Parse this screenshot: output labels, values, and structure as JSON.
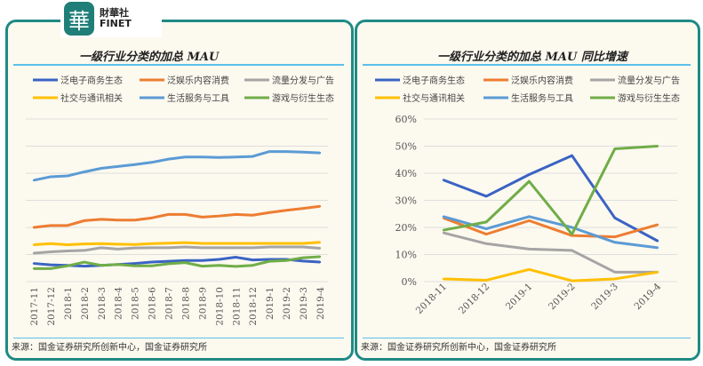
{
  "logo": {
    "cn": "財華社",
    "en": "FINET",
    "mark": "華"
  },
  "source_note": "来源：国金证券研究所创新中心，国金证券研究所",
  "chart_data": [
    {
      "type": "line",
      "title": "一级行业分类的加总 MAU",
      "xlabel": "",
      "ylabel": "",
      "ylim": [
        0,
        6
      ],
      "grid": true,
      "legend": "top",
      "categories": [
        "2017-11",
        "2017-12",
        "2018-1",
        "2018-2",
        "2018-3",
        "2018-4",
        "2018-5",
        "2018-6",
        "2018-7",
        "2018-8",
        "2018-9",
        "2018-10",
        "2018-11",
        "2018-12",
        "2019-1",
        "2019-2",
        "2019-3",
        "2019-4"
      ],
      "series": [
        {
          "name": "泛电子商务生态",
          "color": "#3a63c4",
          "values": [
            0.67,
            0.62,
            0.6,
            0.57,
            0.6,
            0.63,
            0.67,
            0.72,
            0.75,
            0.78,
            0.78,
            0.82,
            0.9,
            0.8,
            0.82,
            0.82,
            0.76,
            0.72
          ]
        },
        {
          "name": "泛娱乐内容消费",
          "color": "#ed7d31",
          "values": [
            2.0,
            2.07,
            2.07,
            2.25,
            2.3,
            2.27,
            2.27,
            2.35,
            2.48,
            2.48,
            2.38,
            2.42,
            2.48,
            2.45,
            2.55,
            2.63,
            2.7,
            2.78
          ]
        },
        {
          "name": "流量分发与广告",
          "color": "#a5a5a5",
          "values": [
            1.05,
            1.1,
            1.13,
            1.15,
            1.25,
            1.2,
            1.24,
            1.25,
            1.25,
            1.28,
            1.25,
            1.25,
            1.25,
            1.25,
            1.28,
            1.28,
            1.28,
            1.23
          ]
        },
        {
          "name": "社交与通讯相关",
          "color": "#ffc000",
          "values": [
            1.36,
            1.4,
            1.36,
            1.39,
            1.4,
            1.38,
            1.37,
            1.4,
            1.42,
            1.44,
            1.41,
            1.41,
            1.41,
            1.41,
            1.41,
            1.41,
            1.41,
            1.45
          ]
        },
        {
          "name": "生活服务与工具",
          "color": "#5b9bd5",
          "values": [
            3.74,
            3.87,
            3.9,
            4.05,
            4.18,
            4.25,
            4.32,
            4.4,
            4.52,
            4.6,
            4.6,
            4.58,
            4.6,
            4.62,
            4.8,
            4.8,
            4.78,
            4.75
          ]
        },
        {
          "name": "游戏与衍生生态",
          "color": "#70ad47",
          "values": [
            0.48,
            0.48,
            0.58,
            0.72,
            0.6,
            0.63,
            0.58,
            0.58,
            0.66,
            0.7,
            0.57,
            0.6,
            0.56,
            0.6,
            0.75,
            0.78,
            0.88,
            0.92
          ]
        }
      ]
    },
    {
      "type": "line",
      "title": "一级行业分类的加总 MAU 同比增速",
      "xlabel": "",
      "ylabel": "",
      "ylim": [
        0,
        60
      ],
      "grid": true,
      "legend": "top",
      "yticks": [
        "0%",
        "10%",
        "20%",
        "30%",
        "40%",
        "50%",
        "60%"
      ],
      "categories": [
        "2018-11",
        "2018-12",
        "2019-1",
        "2019-2",
        "2019-3",
        "2019-4"
      ],
      "series": [
        {
          "name": "泛电子商务生态",
          "color": "#3a63c4",
          "values": [
            37.5,
            31.5,
            39.5,
            46.5,
            23.5,
            15
          ]
        },
        {
          "name": "泛娱乐内容消费",
          "color": "#ed7d31",
          "values": [
            23.5,
            17.5,
            22.5,
            17,
            16.5,
            21
          ]
        },
        {
          "name": "流量分发与广告",
          "color": "#a5a5a5",
          "values": [
            18,
            14,
            12,
            11.5,
            3.5,
            3.5
          ]
        },
        {
          "name": "社交与通讯相关",
          "color": "#ffc000",
          "values": [
            1,
            0.5,
            4.5,
            0.3,
            1,
            3.5
          ]
        },
        {
          "name": "生活服务与工具",
          "color": "#5b9bd5",
          "values": [
            24,
            19.5,
            24,
            20,
            14.5,
            12.5
          ]
        },
        {
          "name": "游戏与衍生生态",
          "color": "#70ad47",
          "values": [
            19,
            22,
            37,
            17.5,
            49,
            50
          ]
        }
      ]
    }
  ]
}
